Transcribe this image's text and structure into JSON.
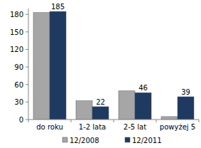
{
  "chart_data": {
    "type": "bar",
    "categories": [
      "do roku",
      "1-2 lata",
      "2-5 lat",
      "powyżej 5"
    ],
    "series": [
      {
        "name": "12/2008",
        "color": "#a6a6a6",
        "values": [
          183,
          32,
          49,
          5
        ]
      },
      {
        "name": "12/2011",
        "color": "#1f3a60",
        "values": [
          185,
          22,
          46,
          39
        ],
        "data_labels": true
      }
    ],
    "ylim": [
      0,
      190
    ],
    "yticks": [
      0,
      30,
      60,
      90,
      120,
      150,
      180
    ],
    "grid": false,
    "legend": "bottom"
  }
}
